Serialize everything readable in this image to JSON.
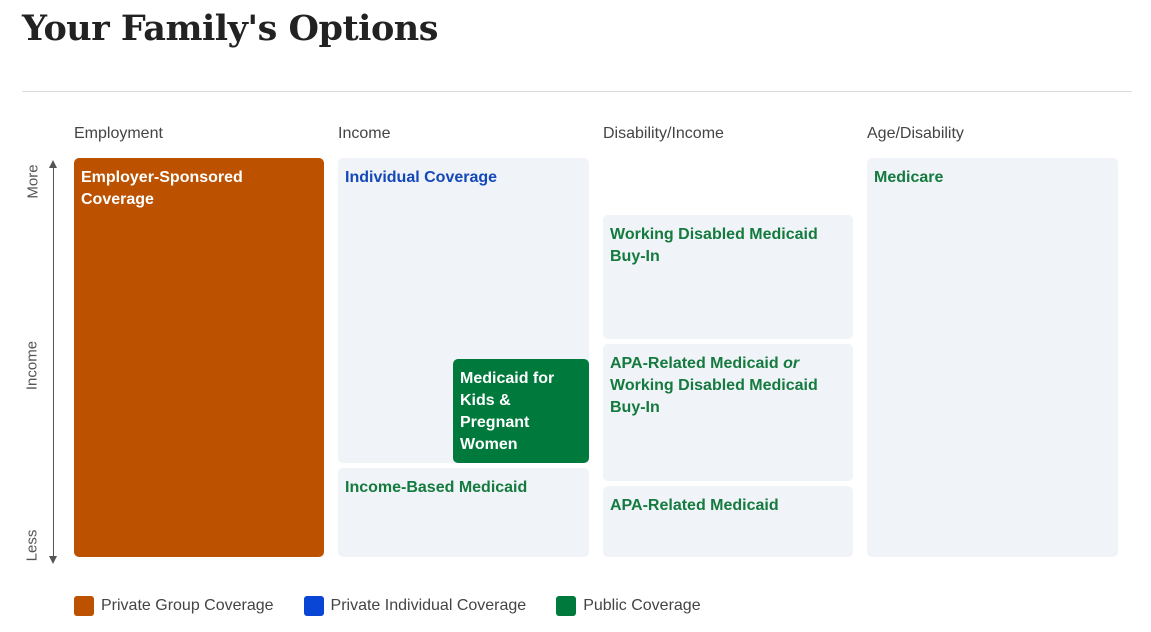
{
  "title": "Your Family's Options",
  "columns": [
    "Employment",
    "Income",
    "Disability/Income",
    "Age/Disability"
  ],
  "axis": {
    "top": "More",
    "middle": "Income",
    "bottom": "Less"
  },
  "boxes": {
    "employer": "Employer-Sponsored Coverage",
    "individual": "Individual Coverage",
    "medicaid_kids": "Medicaid for Kids & Pregnant Women",
    "income_based": "Income-Based Medicaid",
    "working_disabled": "Working Disabled Medicaid Buy-In",
    "apa_or_part1": "APA-Related Medicaid",
    "apa_or_connector": "or",
    "apa_or_part2": "Working Disabled Medicaid Buy-In",
    "apa": "APA-Related Medicaid",
    "medicare": "Medicare"
  },
  "legend": [
    {
      "label": "Private Group Coverage",
      "color": "#bc5200"
    },
    {
      "label": "Private Individual Coverage",
      "color": "#0a46d6"
    },
    {
      "label": "Public Coverage",
      "color": "#007a3c"
    }
  ]
}
